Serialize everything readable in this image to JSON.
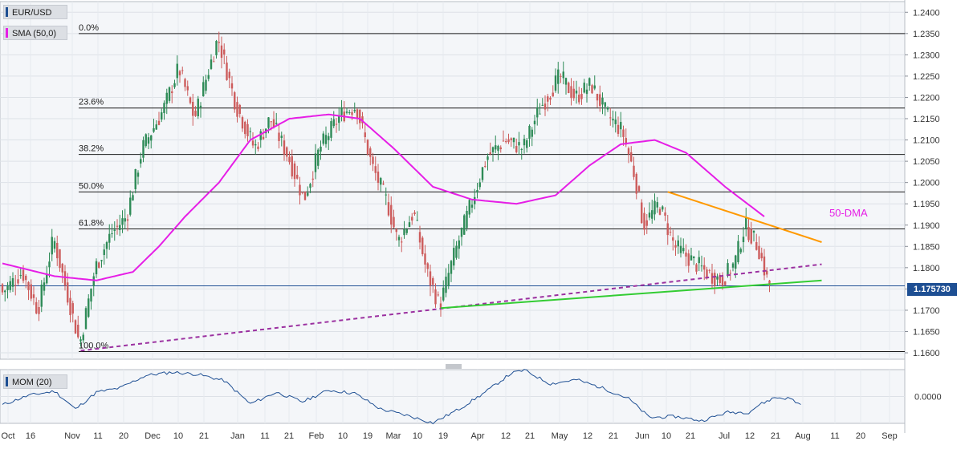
{
  "legend": {
    "symbol": "EUR/USD",
    "sma_label": "SMA (50,0)",
    "mom_label": "MOM (20)",
    "symbol_color": "#1e4f93",
    "sma_color": "#e61ee6",
    "mom_color": "#1e4f93"
  },
  "price_tag": "1.175730",
  "chart_data": [
    {
      "type": "candlestick",
      "title": "EUR/USD",
      "ylim": [
        1.1585,
        1.2425
      ],
      "y_ticks": [
        "1.2400",
        "1.2350",
        "1.2300",
        "1.2250",
        "1.2200",
        "1.2150",
        "1.2100",
        "1.2050",
        "1.2000",
        "1.1950",
        "1.1900",
        "1.1850",
        "1.1800",
        "1.1750",
        "1.1700",
        "1.1650",
        "1.1600"
      ],
      "x_tick_labels": [
        "Oct",
        "16",
        "Nov",
        "11",
        "20",
        "Dec",
        "10",
        "21",
        "Jan",
        "11",
        "21",
        "Feb",
        "10",
        "19",
        "Mar",
        "10",
        "19",
        "Apr",
        "12",
        "21",
        "May",
        "12",
        "21",
        "Jun",
        "10",
        "21",
        "Jul",
        "12",
        "21",
        "Aug",
        "11",
        "20",
        "Sep"
      ],
      "colors": {
        "up": "#2e8b57",
        "down": "#cd5c5c"
      },
      "waypoints": [
        {
          "t": 0,
          "v": 1.174
        },
        {
          "t": 8,
          "v": 1.179
        },
        {
          "t": 14,
          "v": 1.17
        },
        {
          "t": 20,
          "v": 1.187
        },
        {
          "t": 30,
          "v": 1.162
        },
        {
          "t": 36,
          "v": 1.18
        },
        {
          "t": 42,
          "v": 1.188
        },
        {
          "t": 48,
          "v": 1.192
        },
        {
          "t": 54,
          "v": 1.208
        },
        {
          "t": 62,
          "v": 1.217
        },
        {
          "t": 68,
          "v": 1.227
        },
        {
          "t": 74,
          "v": 1.215
        },
        {
          "t": 83,
          "v": 1.234
        },
        {
          "t": 90,
          "v": 1.218
        },
        {
          "t": 97,
          "v": 1.208
        },
        {
          "t": 103,
          "v": 1.215
        },
        {
          "t": 110,
          "v": 1.206
        },
        {
          "t": 116,
          "v": 1.196
        },
        {
          "t": 122,
          "v": 1.208
        },
        {
          "t": 130,
          "v": 1.216
        },
        {
          "t": 136,
          "v": 1.218
        },
        {
          "t": 142,
          "v": 1.204
        },
        {
          "t": 148,
          "v": 1.195
        },
        {
          "t": 152,
          "v": 1.186
        },
        {
          "t": 158,
          "v": 1.193
        },
        {
          "t": 163,
          "v": 1.179
        },
        {
          "t": 168,
          "v": 1.171
        },
        {
          "t": 173,
          "v": 1.182
        },
        {
          "t": 180,
          "v": 1.195
        },
        {
          "t": 186,
          "v": 1.206
        },
        {
          "t": 193,
          "v": 1.21
        },
        {
          "t": 200,
          "v": 1.208
        },
        {
          "t": 206,
          "v": 1.217
        },
        {
          "t": 214,
          "v": 1.225
        },
        {
          "t": 220,
          "v": 1.22
        },
        {
          "t": 226,
          "v": 1.223
        },
        {
          "t": 232,
          "v": 1.216
        },
        {
          "t": 238,
          "v": 1.212
        },
        {
          "t": 243,
          "v": 1.201
        },
        {
          "t": 246,
          "v": 1.19
        },
        {
          "t": 252,
          "v": 1.195
        },
        {
          "t": 258,
          "v": 1.185
        },
        {
          "t": 264,
          "v": 1.182
        },
        {
          "t": 270,
          "v": 1.179
        },
        {
          "t": 276,
          "v": 1.177
        },
        {
          "t": 281,
          "v": 1.181
        },
        {
          "t": 285,
          "v": 1.19
        },
        {
          "t": 290,
          "v": 1.185
        },
        {
          "t": 294,
          "v": 1.176
        }
      ],
      "sma_waypoints": [
        {
          "t": 0,
          "v": 1.181
        },
        {
          "t": 20,
          "v": 1.178
        },
        {
          "t": 36,
          "v": 1.177
        },
        {
          "t": 50,
          "v": 1.179
        },
        {
          "t": 60,
          "v": 1.185
        },
        {
          "t": 70,
          "v": 1.192
        },
        {
          "t": 83,
          "v": 1.2
        },
        {
          "t": 95,
          "v": 1.21
        },
        {
          "t": 110,
          "v": 1.215
        },
        {
          "t": 125,
          "v": 1.216
        },
        {
          "t": 137,
          "v": 1.215
        },
        {
          "t": 150,
          "v": 1.208
        },
        {
          "t": 165,
          "v": 1.199
        },
        {
          "t": 180,
          "v": 1.196
        },
        {
          "t": 197,
          "v": 1.195
        },
        {
          "t": 212,
          "v": 1.197
        },
        {
          "t": 225,
          "v": 1.204
        },
        {
          "t": 237,
          "v": 1.209
        },
        {
          "t": 250,
          "v": 1.21
        },
        {
          "t": 262,
          "v": 1.207
        },
        {
          "t": 277,
          "v": 1.199
        },
        {
          "t": 292,
          "v": 1.192
        }
      ],
      "fib_levels": [
        {
          "label": "0.0%",
          "value": 1.235
        },
        {
          "label": "23.6%",
          "value": 1.2175
        },
        {
          "label": "38.2%",
          "value": 1.2066
        },
        {
          "label": "50.0%",
          "value": 1.1978
        },
        {
          "label": "61.8%",
          "value": 1.1891
        },
        {
          "label": "100.0%",
          "value": 1.1603
        }
      ],
      "trend_lines": [
        {
          "name": "upper-support-dashed",
          "color": "#9b30a0",
          "dashed": true,
          "points": [
            {
              "t": 30,
              "v": 1.1605
            },
            {
              "t": 314,
              "v": 1.1808
            }
          ]
        },
        {
          "name": "green-support",
          "color": "#33cc33",
          "dashed": false,
          "points": [
            {
              "t": 168,
              "v": 1.1705
            },
            {
              "t": 314,
              "v": 1.177
            }
          ]
        },
        {
          "name": "orange-resistance",
          "color": "#ff9900",
          "dashed": false,
          "points": [
            {
              "t": 255,
              "v": 1.1978
            },
            {
              "t": 314,
              "v": 1.186
            }
          ]
        }
      ],
      "current_price": 1.17573,
      "annotation": "50-DMA",
      "annotation_color": "#e61ee6"
    },
    {
      "type": "line",
      "title": "MOM (20)",
      "ylim": [
        -0.0255,
        0.0255
      ],
      "y_ticks": [
        "0.0000"
      ],
      "zero_line": true,
      "color": "#1e4f93",
      "waypoints": [
        {
          "t": 0,
          "v": -0.008
        },
        {
          "t": 10,
          "v": 0.001
        },
        {
          "t": 20,
          "v": 0.005
        },
        {
          "t": 28,
          "v": -0.012
        },
        {
          "t": 36,
          "v": 0.004
        },
        {
          "t": 45,
          "v": 0.008
        },
        {
          "t": 55,
          "v": 0.02
        },
        {
          "t": 65,
          "v": 0.023
        },
        {
          "t": 75,
          "v": 0.021
        },
        {
          "t": 85,
          "v": 0.015
        },
        {
          "t": 95,
          "v": -0.007
        },
        {
          "t": 105,
          "v": 0.004
        },
        {
          "t": 115,
          "v": -0.005
        },
        {
          "t": 125,
          "v": 0.006
        },
        {
          "t": 135,
          "v": 0.003
        },
        {
          "t": 145,
          "v": -0.012
        },
        {
          "t": 155,
          "v": -0.018
        },
        {
          "t": 165,
          "v": -0.025
        },
        {
          "t": 175,
          "v": -0.012
        },
        {
          "t": 185,
          "v": 0.004
        },
        {
          "t": 195,
          "v": 0.022
        },
        {
          "t": 200,
          "v": 0.025
        },
        {
          "t": 210,
          "v": 0.012
        },
        {
          "t": 220,
          "v": 0.016
        },
        {
          "t": 230,
          "v": 0.008
        },
        {
          "t": 240,
          "v": -0.002
        },
        {
          "t": 248,
          "v": -0.02
        },
        {
          "t": 258,
          "v": -0.019
        },
        {
          "t": 268,
          "v": -0.023
        },
        {
          "t": 278,
          "v": -0.015
        },
        {
          "t": 286,
          "v": -0.015
        },
        {
          "t": 290,
          "v": -0.008
        },
        {
          "t": 296,
          "v": -0.001
        },
        {
          "t": 302,
          "v": -0.002
        },
        {
          "t": 306,
          "v": -0.008
        }
      ]
    }
  ]
}
